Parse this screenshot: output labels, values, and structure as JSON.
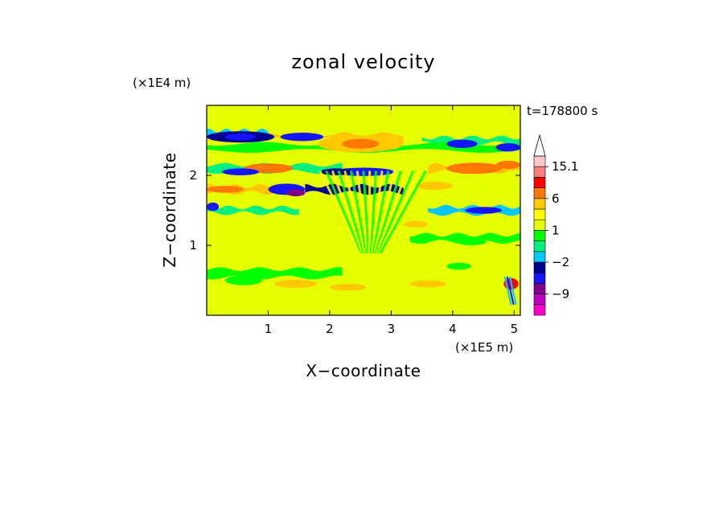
{
  "chart_data": {
    "type": "heatmap",
    "title": "zonal velocity",
    "xlabel": "X−coordinate",
    "ylabel": "Z−coordinate",
    "x_unit": "(×1E5 m)",
    "y_unit": "(×1E4 m)",
    "time_label": "t=178800 s",
    "xlim": [
      0,
      5.1
    ],
    "ylim": [
      0,
      3.0
    ],
    "x_ticks": [
      "1",
      "2",
      "3",
      "4",
      "5"
    ],
    "x_tick_values": [
      1,
      2,
      3,
      4,
      5
    ],
    "y_ticks": [
      "1",
      "2"
    ],
    "y_tick_values": [
      1,
      2
    ],
    "colorbar": {
      "levels": [
        -15,
        -12,
        -9,
        -6,
        -3,
        -2,
        -1,
        0,
        1,
        2,
        3,
        6,
        9,
        12,
        15.1
      ],
      "colors": [
        "#ff00cc",
        "#c000c0",
        "#80008c",
        "#1414ff",
        "#000090",
        "#00c8ff",
        "#00f080",
        "#00ff00",
        "#e6ff00",
        "#ffff00",
        "#ffc800",
        "#ff7800",
        "#ff0000",
        "#ff8080",
        "#ffc8c8"
      ],
      "labels": [
        "15.1",
        "6",
        "1",
        "−2",
        "−9"
      ],
      "label_values": [
        15.1,
        6,
        1,
        -2,
        -9
      ],
      "extend": "max"
    },
    "field_note": "alternating horizontal bands of positive (yellow/orange) and negative (green/cyan/blue) zonal velocity, with a V-shaped wave pattern centered near x=2.7E5 m",
    "bands": [
      {
        "z": 2.8,
        "x0": 0.0,
        "x1": 5.1,
        "value": 1,
        "amp": 0.05
      },
      {
        "z": 2.6,
        "x0": 0.0,
        "x1": 1.0,
        "value": -2,
        "amp": 0.04
      },
      {
        "z": 2.55,
        "x0": 1.0,
        "x1": 3.2,
        "value": 3,
        "amp": 0.04
      },
      {
        "z": 2.5,
        "x0": 3.5,
        "x1": 5.1,
        "value": -1,
        "amp": 0.04
      },
      {
        "z": 2.4,
        "x0": 0.0,
        "x1": 5.1,
        "value": 0.5,
        "amp": 0.05
      },
      {
        "z": 2.1,
        "x0": 0.0,
        "x1": 2.2,
        "value": -1,
        "amp": 0.05
      },
      {
        "z": 2.1,
        "x0": 3.6,
        "x1": 5.1,
        "value": 3,
        "amp": 0.05
      },
      {
        "z": 1.8,
        "x0": 0.0,
        "x1": 1.4,
        "value": 3,
        "amp": 0.05
      },
      {
        "z": 1.8,
        "x0": 1.6,
        "x1": 3.2,
        "value": -3,
        "amp": 0.05
      },
      {
        "z": 1.5,
        "x0": 0.0,
        "x1": 1.5,
        "value": -1,
        "amp": 0.04
      },
      {
        "z": 1.5,
        "x0": 3.6,
        "x1": 5.1,
        "value": -2,
        "amp": 0.05
      },
      {
        "z": 1.1,
        "x0": 3.3,
        "x1": 5.1,
        "value": 0.5,
        "amp": 0.05
      },
      {
        "z": 0.6,
        "x0": 0.0,
        "x1": 2.2,
        "value": 0,
        "amp": 0.06
      },
      {
        "z": 0.25,
        "x0": 0.0,
        "x1": 5.1,
        "value": 1,
        "amp": 0.05
      }
    ]
  }
}
